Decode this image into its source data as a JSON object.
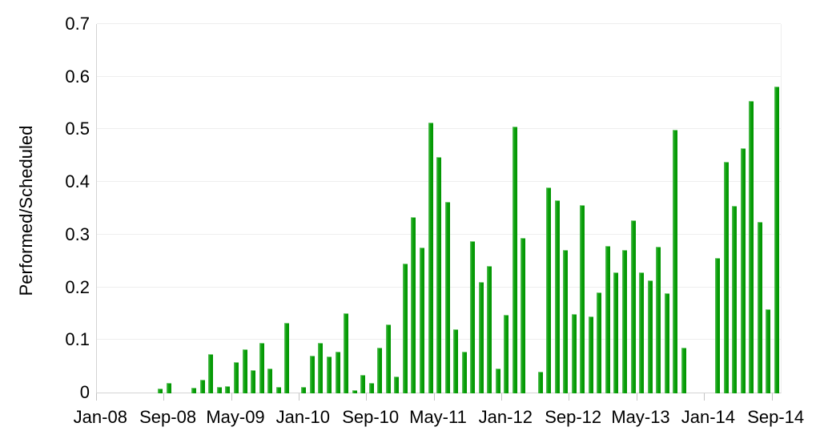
{
  "chart_data": {
    "type": "bar",
    "title": "",
    "xlabel": "",
    "ylabel": "Performed/Scheduled",
    "ylim": [
      0,
      0.7
    ],
    "grid": true,
    "legend": null,
    "bar_color": "#0da10d",
    "y_tick_labels": [
      "0",
      "0.1",
      "0.2",
      "0.3",
      "0.4",
      "0.5",
      "0.6",
      "0.7"
    ],
    "x_tick_interval": 8,
    "x_tick_labels": [
      "Jan-08",
      "Sep-08",
      "May-09",
      "Jan-10",
      "Sep-10",
      "May-11",
      "Jan-12",
      "Sep-12",
      "May-13",
      "Jan-14",
      "Sep-14"
    ],
    "categories": [
      "Jan-08",
      "Feb-08",
      "Mar-08",
      "Apr-08",
      "May-08",
      "Jun-08",
      "Jul-08",
      "Aug-08",
      "Sep-08",
      "Oct-08",
      "Nov-08",
      "Dec-08",
      "Jan-09",
      "Feb-09",
      "Mar-09",
      "Apr-09",
      "May-09",
      "Jun-09",
      "Jul-09",
      "Aug-09",
      "Sep-09",
      "Oct-09",
      "Nov-09",
      "Dec-09",
      "Jan-10",
      "Feb-10",
      "Mar-10",
      "Apr-10",
      "May-10",
      "Jun-10",
      "Jul-10",
      "Aug-10",
      "Sep-10",
      "Oct-10",
      "Nov-10",
      "Dec-10",
      "Jan-11",
      "Feb-11",
      "Mar-11",
      "Apr-11",
      "May-11",
      "Jun-11",
      "Jul-11",
      "Aug-11",
      "Sep-11",
      "Oct-11",
      "Nov-11",
      "Dec-11",
      "Jan-12",
      "Feb-12",
      "Mar-12",
      "Apr-12",
      "May-12",
      "Jun-12",
      "Jul-12",
      "Aug-12",
      "Sep-12",
      "Oct-12",
      "Nov-12",
      "Dec-12",
      "Jan-13",
      "Feb-13",
      "Mar-13",
      "Apr-13",
      "May-13",
      "Jun-13",
      "Jul-13",
      "Aug-13",
      "Sep-13",
      "Oct-13",
      "Nov-13",
      "Dec-13",
      "Jan-14",
      "Feb-14",
      "Mar-14",
      "Apr-14",
      "May-14",
      "Jun-14",
      "Jul-14",
      "Aug-14",
      "Sep-14"
    ],
    "values": [
      0,
      0,
      0,
      0,
      0,
      0,
      0,
      0.007,
      0.019,
      0,
      0,
      0.009,
      0.024,
      0.073,
      0.01,
      0.012,
      0.058,
      0.082,
      0.043,
      0.095,
      0.045,
      0.011,
      0.133,
      0,
      0.011,
      0.07,
      0.094,
      0.069,
      0.078,
      0.151,
      0.005,
      0.033,
      0.018,
      0.085,
      0.13,
      0.03,
      0.245,
      0.333,
      0.275,
      0.513,
      0.447,
      0.362,
      0.121,
      0.077,
      0.287,
      0.21,
      0.24,
      0.046,
      0.148,
      0.506,
      0.294,
      0,
      0.04,
      0.389,
      0.366,
      0.271,
      0.149,
      0.356,
      0.145,
      0.19,
      0.278,
      0.228,
      0.271,
      0.328,
      0.229,
      0.213,
      0.277,
      0.189,
      0.499,
      0.085,
      0,
      0,
      0,
      0.256,
      0.438,
      0.355,
      0.464,
      0.554,
      0.324,
      0.158,
      0.582
    ]
  }
}
